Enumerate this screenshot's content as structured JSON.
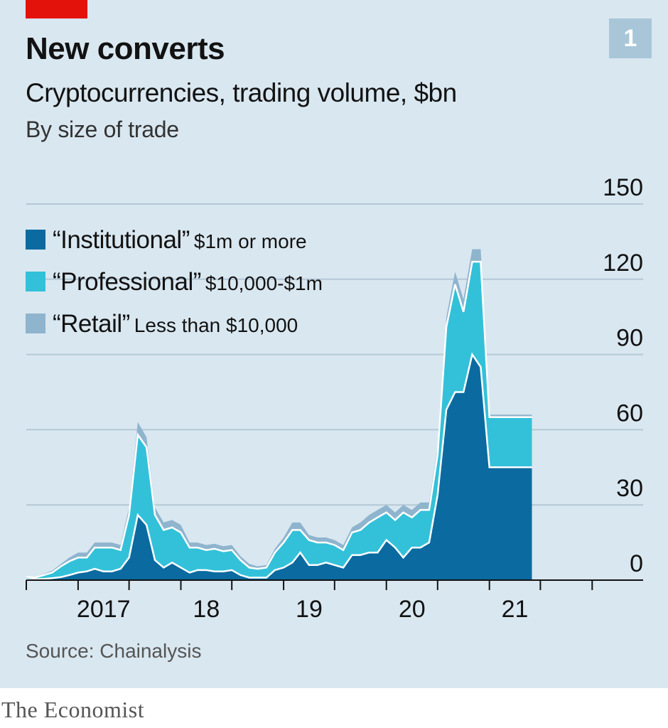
{
  "header": {
    "chart_number": "1",
    "brand": "The Economist"
  },
  "colors": {
    "background": "#d9e7f0",
    "institutional": "#0b6aa0",
    "professional": "#33c1d9",
    "retail": "#8fb4ce",
    "gridline": "#b5c8d6",
    "axis": "#121212",
    "accent": "#e3120b"
  },
  "legend": [
    {
      "name": "“Institutional”",
      "range": "$1m or more",
      "color": "#0b6aa0"
    },
    {
      "name": "“Professional”",
      "range": "$10,000-$1m",
      "color": "#33c1d9"
    },
    {
      "name": "“Retail”",
      "range": "Less than $10,000",
      "color": "#8fb4ce"
    }
  ],
  "chart_data": {
    "type": "area",
    "stacked": true,
    "title": "New converts",
    "subtitle": "Cryptocurrencies, trading volume, $bn",
    "subtitle2": "By size of trade",
    "source": "Source: Chainalysis",
    "y_ticks": [
      0,
      30,
      60,
      90,
      120,
      150
    ],
    "ylim": [
      0,
      150
    ],
    "y_axis_side": "right",
    "grid": true,
    "x_ticks": [
      {
        "date": "2017-01-01",
        "label": "2017"
      },
      {
        "date": "2018-01-01",
        "label": "18"
      },
      {
        "date": "2019-01-01",
        "label": "19"
      },
      {
        "date": "2020-01-01",
        "label": "20"
      },
      {
        "date": "2021-01-01",
        "label": "21"
      }
    ],
    "extra_ticks": [
      "2016-07-01",
      "2022-01-01"
    ],
    "xlim": [
      "2016-07-01",
      "2022-07-01"
    ],
    "x": [
      "2016-07-01",
      "2016-08-01",
      "2016-09-01",
      "2016-10-01",
      "2016-11-01",
      "2016-12-01",
      "2017-01-01",
      "2017-02-01",
      "2017-03-01",
      "2017-04-01",
      "2017-05-01",
      "2017-06-01",
      "2017-07-01",
      "2017-08-01",
      "2017-09-01",
      "2017-10-01",
      "2017-11-01",
      "2017-12-01",
      "2018-01-01",
      "2018-02-01",
      "2018-03-01",
      "2018-04-01",
      "2018-05-01",
      "2018-06-01",
      "2018-07-01",
      "2018-08-01",
      "2018-09-01",
      "2018-10-01",
      "2018-11-01",
      "2018-12-01",
      "2019-01-01",
      "2019-02-01",
      "2019-03-01",
      "2019-04-01",
      "2019-05-01",
      "2019-06-01",
      "2019-07-01",
      "2019-08-01",
      "2019-09-01",
      "2019-10-01",
      "2019-11-01",
      "2019-12-01",
      "2020-01-01",
      "2020-02-01",
      "2020-03-01",
      "2020-04-01",
      "2020-05-01",
      "2020-06-01",
      "2020-07-01",
      "2020-08-01",
      "2020-09-01",
      "2020-10-01",
      "2020-11-01",
      "2020-12-01",
      "2021-01-01",
      "2021-02-01",
      "2021-03-01",
      "2021-04-01",
      "2021-05-01",
      "2021-06-01"
    ],
    "legend_placement": "top-left",
    "series": [
      {
        "name": "“Institutional”",
        "color": "#0b6aa0",
        "values": [
          0.3,
          0.3,
          0.5,
          0.8,
          1.2,
          2,
          3,
          3.5,
          4.5,
          3.5,
          3.5,
          4.5,
          9,
          26,
          22,
          8,
          5,
          7,
          5,
          3,
          4,
          4,
          3.5,
          3.5,
          4,
          2,
          1,
          1,
          1,
          4,
          5,
          7,
          11,
          6,
          6,
          7,
          6,
          5,
          10,
          10,
          11,
          11,
          16,
          13,
          9,
          13,
          13,
          15,
          34,
          68,
          75,
          75,
          90,
          85,
          45,
          45,
          45,
          45,
          45,
          45
        ]
      },
      {
        "name": "“Professional”",
        "color": "#33c1d9",
        "values": [
          1,
          0.7,
          1.5,
          2.2,
          4.3,
          5.5,
          6,
          5.5,
          8.5,
          9.5,
          9.5,
          7.5,
          17,
          32,
          31,
          18,
          15,
          14,
          14,
          10,
          9,
          8,
          9,
          8,
          8,
          6,
          4,
          3.5,
          4,
          7,
          10,
          13,
          9,
          10,
          9,
          8,
          8,
          7,
          9,
          10,
          12,
          14,
          11,
          11,
          18,
          12,
          15,
          13,
          16,
          33,
          43,
          32,
          37,
          42,
          20,
          20,
          20,
          20,
          20,
          20
        ]
      },
      {
        "name": "“Retail”",
        "color": "#8fb4ce",
        "values": [
          0.3,
          0.3,
          0.5,
          0.8,
          1,
          1.5,
          2,
          2,
          2,
          2,
          2,
          2,
          3,
          5,
          4,
          3,
          3,
          3,
          3,
          2,
          2,
          2,
          2,
          2,
          2,
          1.5,
          1.5,
          1,
          1,
          1.5,
          2,
          3,
          3,
          2,
          2,
          2,
          2,
          2,
          2,
          3,
          3,
          3,
          3,
          3,
          3,
          3,
          3,
          3,
          3,
          4,
          5,
          5,
          5,
          5,
          1,
          1,
          1,
          1,
          1,
          1
        ]
      }
    ]
  }
}
